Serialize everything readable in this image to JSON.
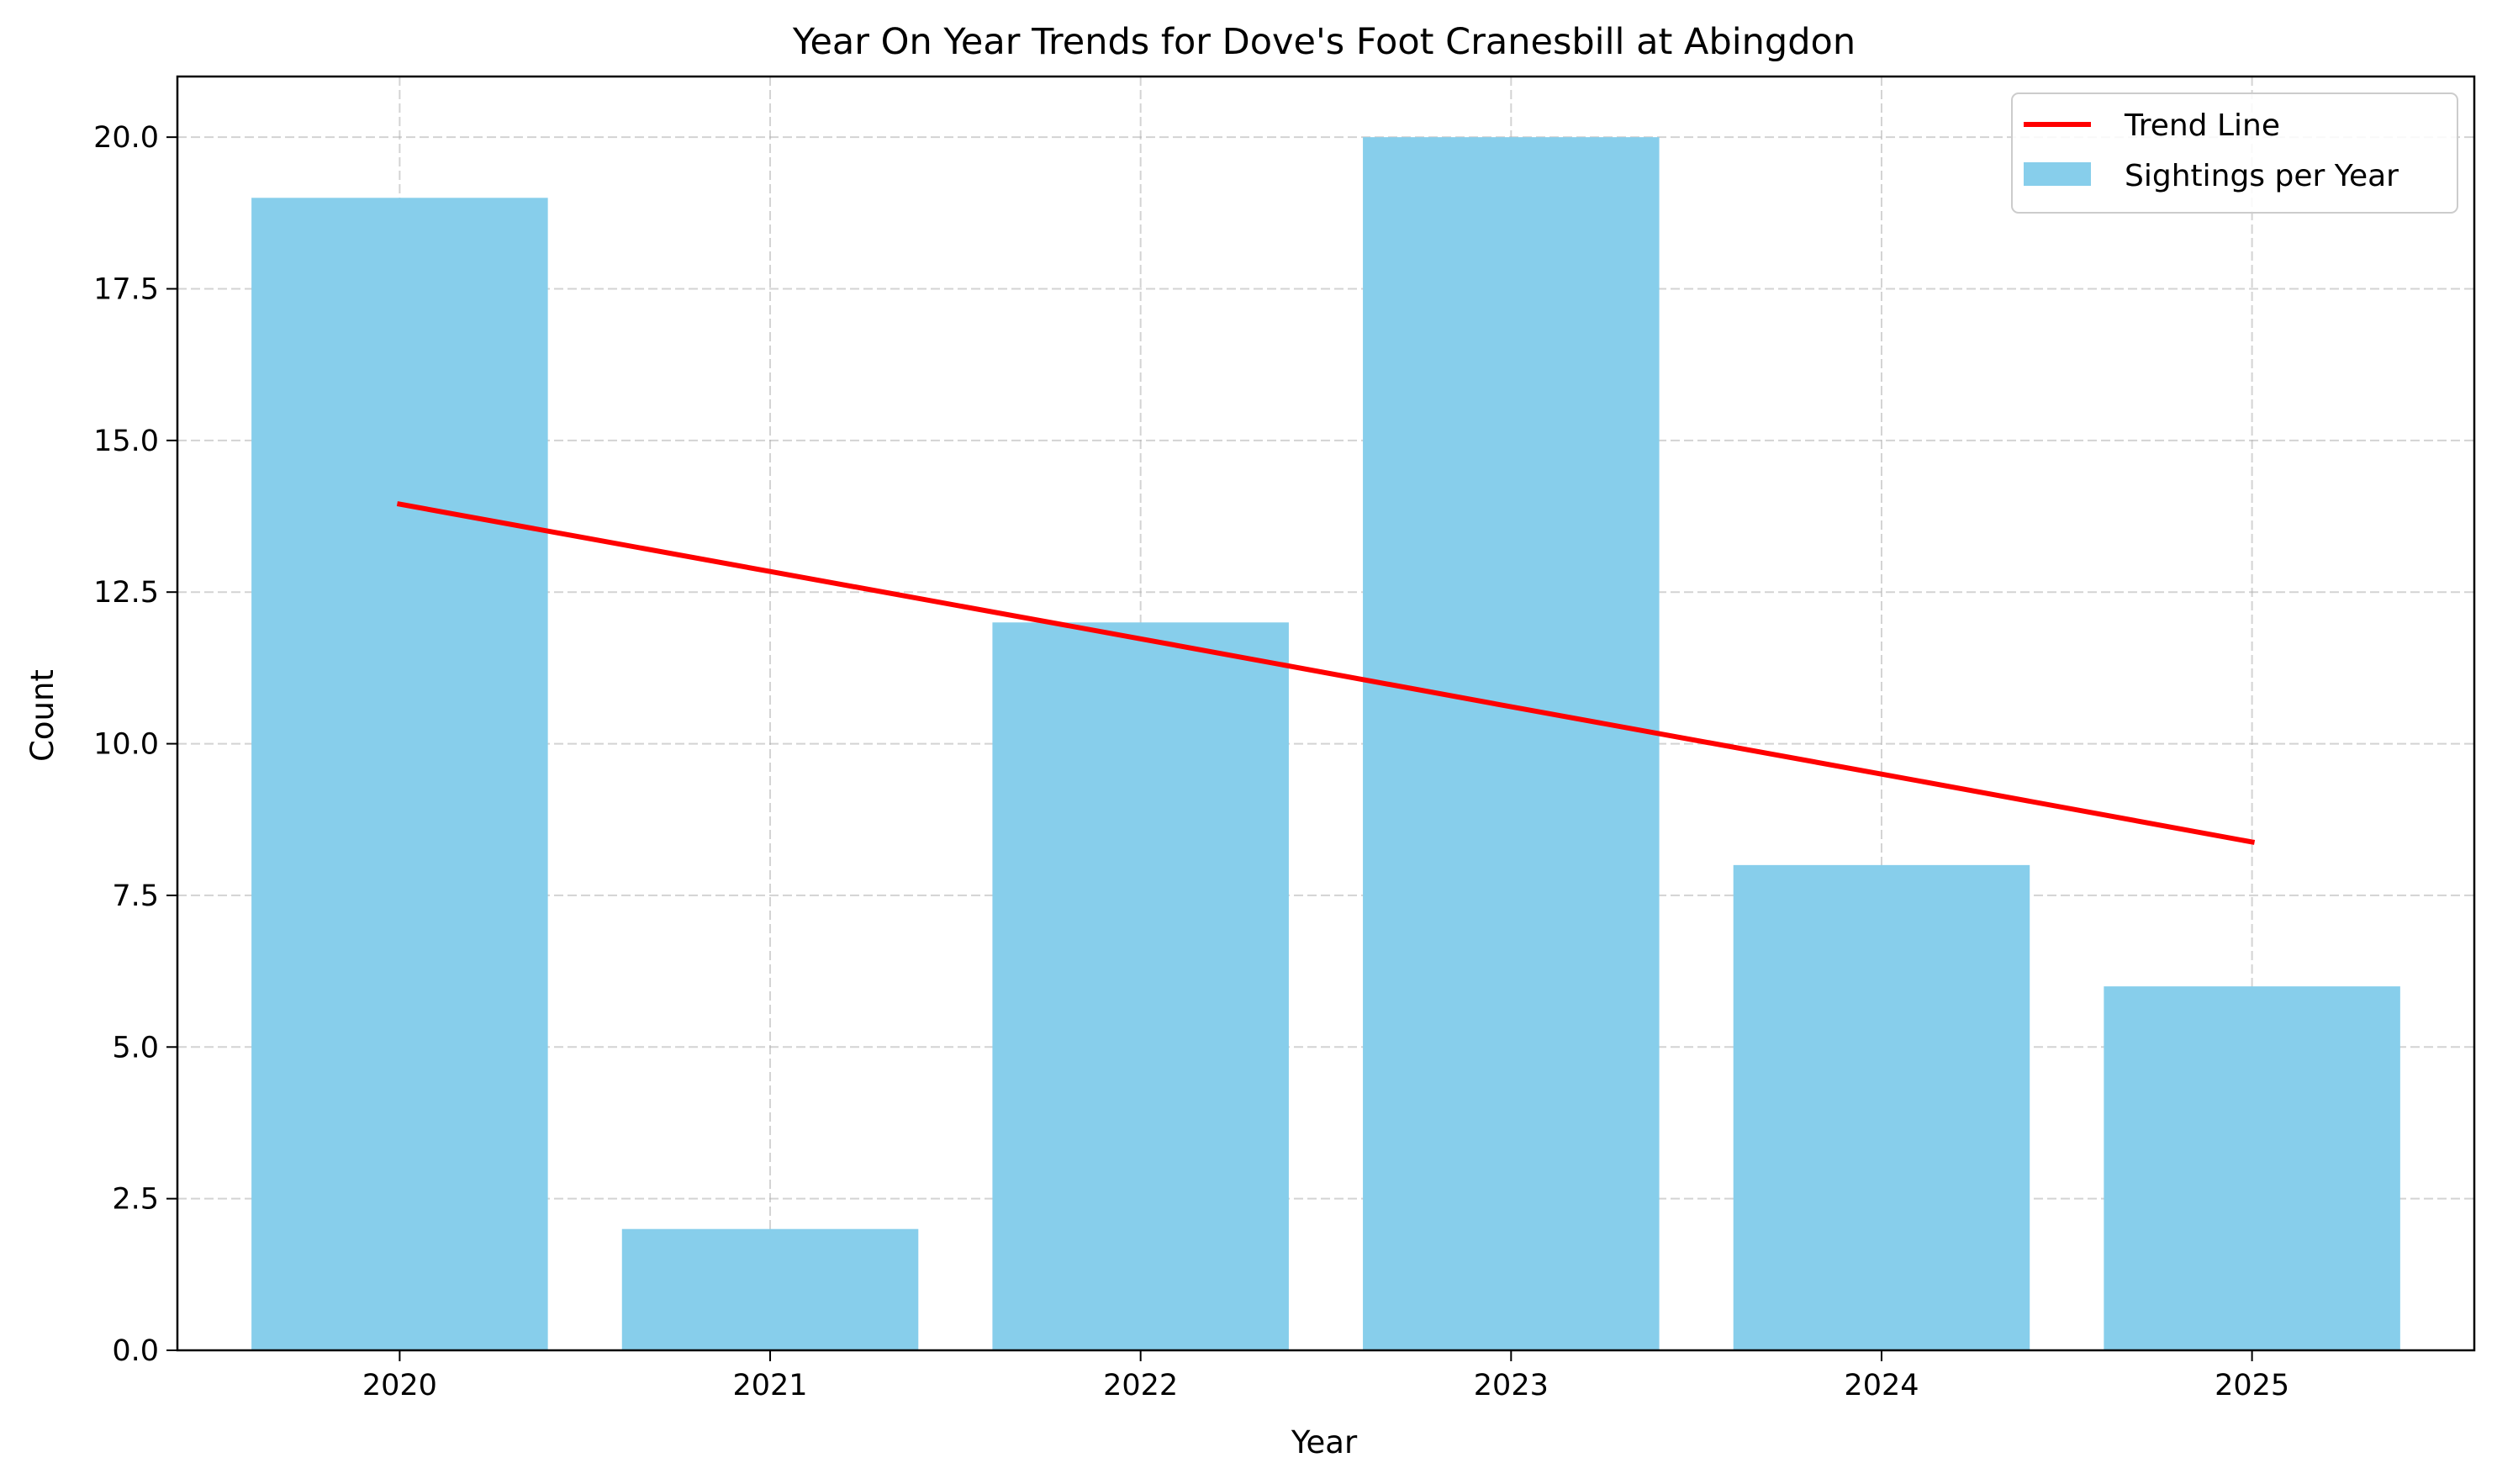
{
  "chart_data": {
    "type": "bar",
    "title": "Year On Year Trends for Dove's Foot Cranesbill at Abingdon",
    "xlabel": "Year",
    "ylabel": "Count",
    "categories": [
      "2020",
      "2021",
      "2022",
      "2023",
      "2024",
      "2025"
    ],
    "series": [
      {
        "name": "Sightings per Year",
        "type": "bar",
        "color": "#87CEEB",
        "values": [
          19,
          2,
          12,
          20,
          8,
          6
        ]
      },
      {
        "name": "Trend Line",
        "type": "line",
        "color": "#FF0000",
        "values": [
          13.95,
          12.84,
          11.73,
          10.61,
          9.5,
          8.38
        ]
      }
    ],
    "ylim": [
      0,
      21
    ],
    "yticks": [
      "0.0",
      "2.5",
      "5.0",
      "7.5",
      "10.0",
      "12.5",
      "15.0",
      "17.5",
      "20.0"
    ],
    "grid": true,
    "legend_position": "top-right"
  }
}
